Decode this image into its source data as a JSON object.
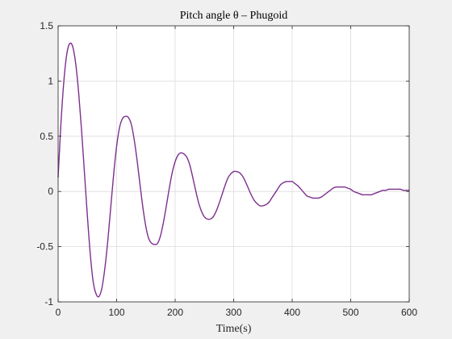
{
  "chart_data": {
    "type": "line",
    "title": "Pitch angle θ – Phugoid",
    "xlabel": "Time(s)",
    "ylabel": "",
    "xlim": [
      0,
      600
    ],
    "ylim": [
      -1,
      1.5
    ],
    "xticks": [
      0,
      100,
      200,
      300,
      400,
      500,
      600
    ],
    "yticks": [
      -1,
      -0.5,
      0,
      0.5,
      1,
      1.5
    ],
    "xtick_labels": [
      "0",
      "100",
      "200",
      "300",
      "400",
      "500",
      "600"
    ],
    "ytick_labels": [
      "-1",
      "-0.5",
      "0",
      "0.5",
      "1",
      "1.5"
    ],
    "grid": true,
    "background_color": "#f0f0f0",
    "plot_area_color": "#ffffff",
    "grid_color": "#dcdcdc",
    "line_color": "#7e2f8e",
    "series": [
      {
        "points": [
          [
            0,
            0.13
          ],
          [
            5,
            0.63
          ],
          [
            10,
            1.01
          ],
          [
            15,
            1.25
          ],
          [
            20,
            1.34
          ],
          [
            25,
            1.31
          ],
          [
            30,
            1.16
          ],
          [
            35,
            0.9
          ],
          [
            40,
            0.56
          ],
          [
            45,
            0.17
          ],
          [
            50,
            -0.22
          ],
          [
            55,
            -0.57
          ],
          [
            60,
            -0.82
          ],
          [
            65,
            -0.93
          ],
          [
            70,
            -0.95
          ],
          [
            75,
            -0.87
          ],
          [
            80,
            -0.69
          ],
          [
            85,
            -0.44
          ],
          [
            90,
            -0.14
          ],
          [
            95,
            0.16
          ],
          [
            100,
            0.41
          ],
          [
            105,
            0.58
          ],
          [
            110,
            0.66
          ],
          [
            115,
            0.68
          ],
          [
            120,
            0.67
          ],
          [
            125,
            0.61
          ],
          [
            130,
            0.47
          ],
          [
            135,
            0.28
          ],
          [
            140,
            0.06
          ],
          [
            145,
            -0.15
          ],
          [
            150,
            -0.32
          ],
          [
            155,
            -0.43
          ],
          [
            160,
            -0.47
          ],
          [
            165,
            -0.48
          ],
          [
            170,
            -0.47
          ],
          [
            175,
            -0.4
          ],
          [
            180,
            -0.28
          ],
          [
            185,
            -0.13
          ],
          [
            190,
            0.03
          ],
          [
            195,
            0.17
          ],
          [
            200,
            0.27
          ],
          [
            205,
            0.33
          ],
          [
            210,
            0.35
          ],
          [
            215,
            0.34
          ],
          [
            220,
            0.31
          ],
          [
            225,
            0.24
          ],
          [
            230,
            0.13
          ],
          [
            235,
            0.01
          ],
          [
            240,
            -0.1
          ],
          [
            245,
            -0.18
          ],
          [
            250,
            -0.23
          ],
          [
            255,
            -0.25
          ],
          [
            260,
            -0.25
          ],
          [
            265,
            -0.23
          ],
          [
            270,
            -0.18
          ],
          [
            275,
            -0.11
          ],
          [
            280,
            -0.03
          ],
          [
            285,
            0.05
          ],
          [
            290,
            0.12
          ],
          [
            295,
            0.16
          ],
          [
            300,
            0.18
          ],
          [
            305,
            0.18
          ],
          [
            310,
            0.17
          ],
          [
            315,
            0.14
          ],
          [
            320,
            0.09
          ],
          [
            325,
            0.03
          ],
          [
            330,
            -0.03
          ],
          [
            335,
            -0.08
          ],
          [
            340,
            -0.11
          ],
          [
            345,
            -0.13
          ],
          [
            350,
            -0.13
          ],
          [
            355,
            -0.12
          ],
          [
            360,
            -0.1
          ],
          [
            365,
            -0.06
          ],
          [
            370,
            -0.02
          ],
          [
            375,
            0.02
          ],
          [
            380,
            0.06
          ],
          [
            385,
            0.08
          ],
          [
            390,
            0.09
          ],
          [
            395,
            0.09
          ],
          [
            400,
            0.09
          ],
          [
            405,
            0.07
          ],
          [
            410,
            0.05
          ],
          [
            415,
            0.02
          ],
          [
            420,
            -0.01
          ],
          [
            425,
            -0.04
          ],
          [
            430,
            -0.05
          ],
          [
            435,
            -0.06
          ],
          [
            440,
            -0.06
          ],
          [
            445,
            -0.06
          ],
          [
            450,
            -0.05
          ],
          [
            455,
            -0.03
          ],
          [
            460,
            -0.01
          ],
          [
            465,
            0.01
          ],
          [
            470,
            0.03
          ],
          [
            475,
            0.04
          ],
          [
            480,
            0.04
          ],
          [
            485,
            0.04
          ],
          [
            490,
            0.04
          ],
          [
            495,
            0.03
          ],
          [
            500,
            0.02
          ],
          [
            505,
            0.0
          ],
          [
            510,
            -0.01
          ],
          [
            515,
            -0.02
          ],
          [
            520,
            -0.03
          ],
          [
            525,
            -0.03
          ],
          [
            530,
            -0.03
          ],
          [
            535,
            -0.03
          ],
          [
            540,
            -0.02
          ],
          [
            545,
            -0.01
          ],
          [
            550,
            0.0
          ],
          [
            555,
            0.01
          ],
          [
            560,
            0.01
          ],
          [
            565,
            0.02
          ],
          [
            570,
            0.02
          ],
          [
            575,
            0.02
          ],
          [
            580,
            0.02
          ],
          [
            585,
            0.02
          ],
          [
            590,
            0.01
          ],
          [
            595,
            0.01
          ],
          [
            600,
            0.01
          ]
        ]
      }
    ]
  }
}
